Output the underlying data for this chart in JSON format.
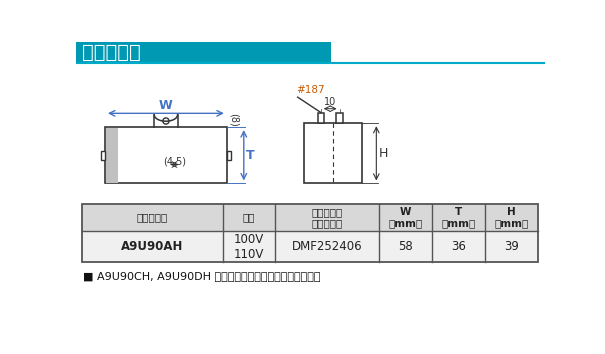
{
  "title": "コンデンサ",
  "title_bg_color": "#0099b3",
  "title_text_color": "#ffffff",
  "title_line_color": "#00aac8",
  "bg_color": "#ffffff",
  "table_header_bg": "#d8d8d8",
  "table_row_bg": "#f0f0f0",
  "table_border_color": "#555555",
  "table_headers_line1": [
    "モータ形式",
    "電圧",
    "コンデンサ",
    "W",
    "T",
    "H"
  ],
  "table_headers_line2": [
    "",
    "",
    "（付属品）",
    "（mm）",
    "（mm）",
    "（mm）"
  ],
  "table_row": [
    "A9U90AH",
    "100V\n110V",
    "DMF252406",
    "58",
    "36",
    "39"
  ],
  "footer_text": "■ A9U90CH, A9U90DH はコントローラに内蔵しています。",
  "label_W": "W",
  "label_T": "T",
  "label_45": "(4.5)",
  "label_8": "(8)",
  "label_hash": "#187",
  "label_10": "10",
  "label_H": "H",
  "line_color": "#333333",
  "dim_color_blue": "#4472c4",
  "dim_color_orange": "#c85a00"
}
